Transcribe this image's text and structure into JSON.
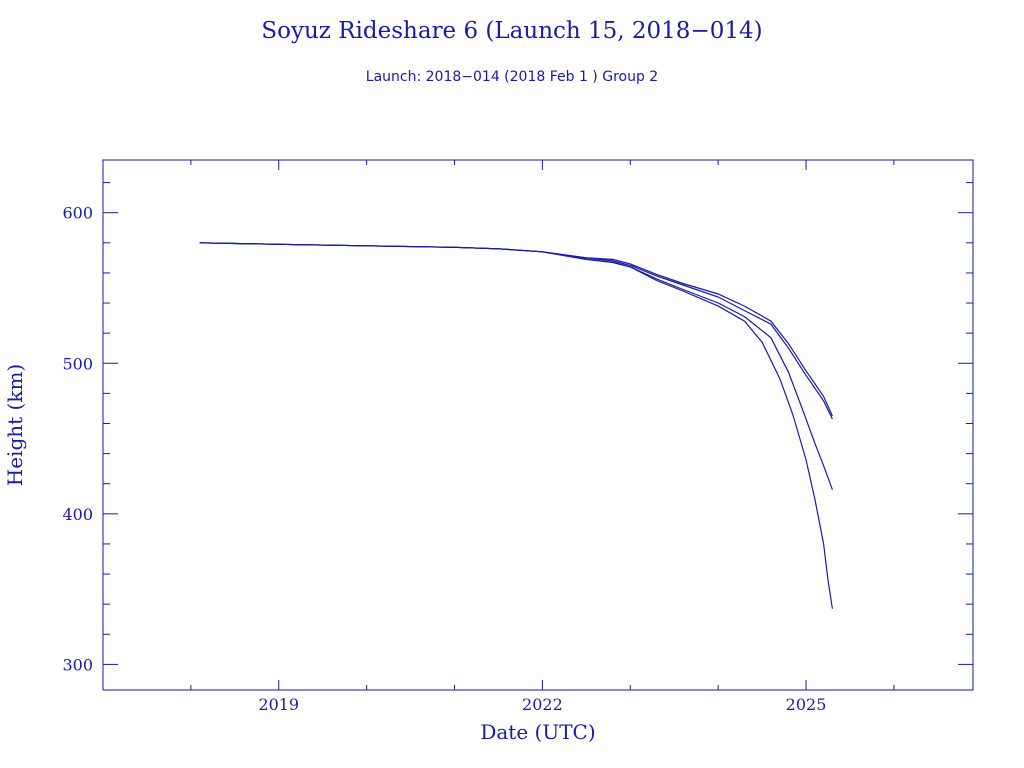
{
  "chart_data": {
    "type": "line",
    "title": "Soyuz Rideshare 6 (Launch 15, 2018−014)",
    "subtitle": "Launch: 2018−014  (2018 Feb  1 )  Group 2",
    "xlabel": "Date (UTC)",
    "ylabel": "Height (km)",
    "xlim": [
      2017.0,
      2026.9
    ],
    "ylim": [
      283,
      635
    ],
    "x_ticks": [
      2019,
      2022,
      2025
    ],
    "x_tick_labels": [
      "2019",
      "2022",
      "2025"
    ],
    "y_ticks": [
      300,
      400,
      500,
      600
    ],
    "y_tick_labels": [
      "300",
      "400",
      "500",
      "600"
    ],
    "grid": false,
    "colors": {
      "axis": "#1a1aa6",
      "line": "#1a1aa6"
    },
    "series": [
      {
        "x": [
          2018.1,
          2019.0,
          2020.0,
          2021.0,
          2021.5,
          2022.0,
          2022.5,
          2022.8,
          2023.0,
          2023.3,
          2023.6,
          2024.0,
          2024.3,
          2024.6,
          2024.8,
          2025.0,
          2025.2,
          2025.3
        ],
        "y": [
          580,
          579,
          578,
          577,
          576,
          574,
          570,
          568,
          565,
          558,
          552,
          544,
          535,
          526,
          510,
          492,
          475,
          463
        ]
      },
      {
        "x": [
          2018.1,
          2019.0,
          2020.0,
          2021.0,
          2021.5,
          2022.0,
          2022.5,
          2022.8,
          2023.0,
          2023.3,
          2023.6,
          2024.0,
          2024.3,
          2024.6,
          2024.8,
          2025.0,
          2025.2,
          2025.3
        ],
        "y": [
          580,
          579,
          578,
          577,
          576,
          574,
          570,
          569,
          566,
          559,
          553,
          546,
          538,
          528,
          513,
          495,
          478,
          465
        ]
      },
      {
        "x": [
          2018.1,
          2019.0,
          2020.0,
          2021.0,
          2021.5,
          2022.0,
          2022.5,
          2022.8,
          2023.0,
          2023.3,
          2023.6,
          2024.0,
          2024.3,
          2024.6,
          2024.8,
          2024.95,
          2025.1,
          2025.2,
          2025.3
        ],
        "y": [
          580,
          579,
          578,
          577,
          576,
          574,
          569,
          567,
          564,
          556,
          549,
          540,
          531,
          517,
          494,
          471,
          447,
          432,
          416
        ]
      },
      {
        "x": [
          2018.1,
          2019.0,
          2020.0,
          2021.0,
          2021.5,
          2022.0,
          2022.5,
          2022.8,
          2023.0,
          2023.3,
          2023.6,
          2024.0,
          2024.3,
          2024.5,
          2024.7,
          2024.85,
          2025.0,
          2025.1,
          2025.2,
          2025.25,
          2025.3
        ],
        "y": [
          580,
          579,
          578,
          577,
          576,
          574,
          569,
          567,
          564,
          555,
          548,
          538,
          528,
          514,
          490,
          466,
          436,
          410,
          380,
          356,
          337
        ]
      }
    ]
  }
}
